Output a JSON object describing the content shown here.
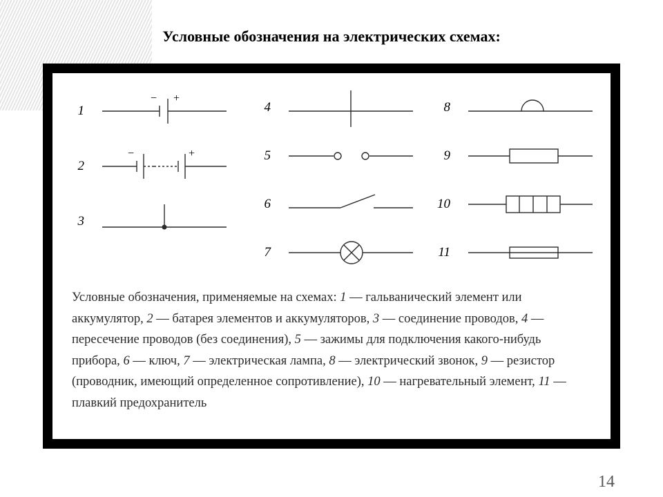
{
  "title": {
    "text": "Условные обозначения на электрических схемах:",
    "fontsize": 22
  },
  "page_number": "14",
  "symbols": {
    "stroke": "#2b2b2b",
    "stroke_width": 1.4,
    "col1": [
      {
        "n": "1",
        "kind": "cell"
      },
      {
        "n": "2",
        "kind": "battery"
      },
      {
        "n": "3",
        "kind": "junction"
      }
    ],
    "col2": [
      {
        "n": "4",
        "kind": "cross-no-connect"
      },
      {
        "n": "5",
        "kind": "terminals"
      },
      {
        "n": "6",
        "kind": "switch"
      },
      {
        "n": "7",
        "kind": "lamp"
      }
    ],
    "col3": [
      {
        "n": "8",
        "kind": "bell"
      },
      {
        "n": "9",
        "kind": "resistor"
      },
      {
        "n": "10",
        "kind": "heater"
      },
      {
        "n": "11",
        "kind": "fuse"
      }
    ]
  },
  "legend": {
    "intro": "Условные обозначения, применяемые на схемах: ",
    "items": [
      {
        "n": "1",
        "t": "гальванический элемент или аккумулятор"
      },
      {
        "n": "2",
        "t": "батарея элементов и аккумуляторов"
      },
      {
        "n": "3",
        "t": "соединение проводов"
      },
      {
        "n": "4",
        "t": "пересечение проводов (без соединения)"
      },
      {
        "n": "5",
        "t": "зажимы для подключения какого-нибудь прибора"
      },
      {
        "n": "6",
        "t": "ключ"
      },
      {
        "n": "7",
        "t": "электрическая лампа"
      },
      {
        "n": "8",
        "t": "электрический звонок"
      },
      {
        "n": "9",
        "t": "резистор (проводник, имеющий определенное сопротивление)"
      },
      {
        "n": "10",
        "t": "нагревательный элемент"
      },
      {
        "n": "11",
        "t": "плавкий предохранитель"
      }
    ]
  }
}
